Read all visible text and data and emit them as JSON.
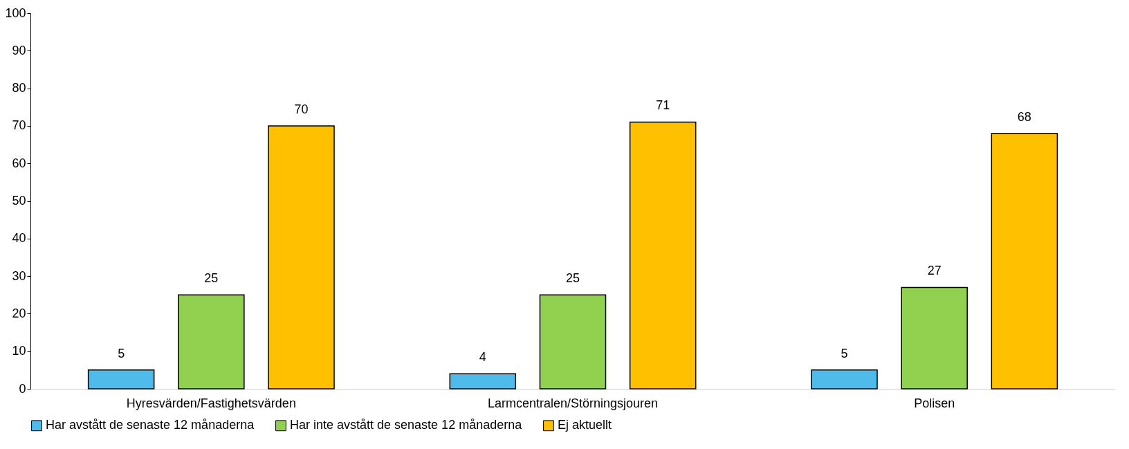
{
  "chart_data": {
    "type": "bar",
    "categories": [
      "Hyresvärden/Fastighetsvärden",
      "Larmcentralen/Störningsjouren",
      "Polisen"
    ],
    "series": [
      {
        "name": "Har avstått de senaste 12 månaderna",
        "color": "#4fbbeb",
        "values": [
          5,
          4,
          5
        ]
      },
      {
        "name": "Har inte avstått de senaste 12 månaderna",
        "color": "#92d050",
        "values": [
          25,
          25,
          27
        ]
      },
      {
        "name": "Ej aktuellt",
        "color": "#ffc000",
        "values": [
          70,
          71,
          68
        ]
      }
    ],
    "ylim": [
      0,
      100
    ],
    "yticks": [
      0,
      10,
      20,
      30,
      40,
      50,
      60,
      70,
      80,
      90,
      100
    ],
    "data_labels": true,
    "legend": "bottom"
  }
}
